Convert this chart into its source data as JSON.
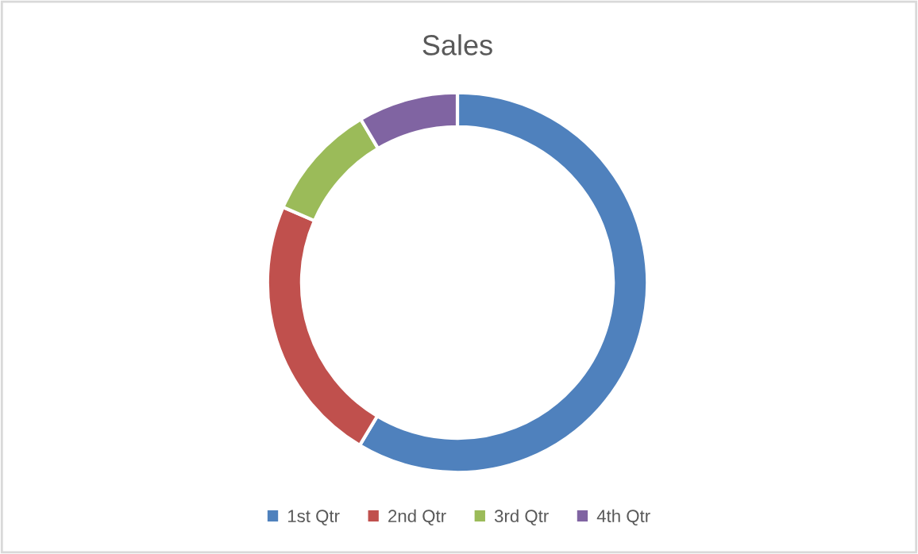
{
  "chart_data": {
    "type": "donut",
    "title": "Sales",
    "categories": [
      "1st Qtr",
      "2nd Qtr",
      "3rd Qtr",
      "4th Qtr"
    ],
    "values": [
      58.6,
      22.9,
      10.0,
      8.5
    ],
    "colors": [
      "#4f81bd",
      "#c0504d",
      "#9bbb59",
      "#8064a2"
    ],
    "legend": "bottom"
  }
}
